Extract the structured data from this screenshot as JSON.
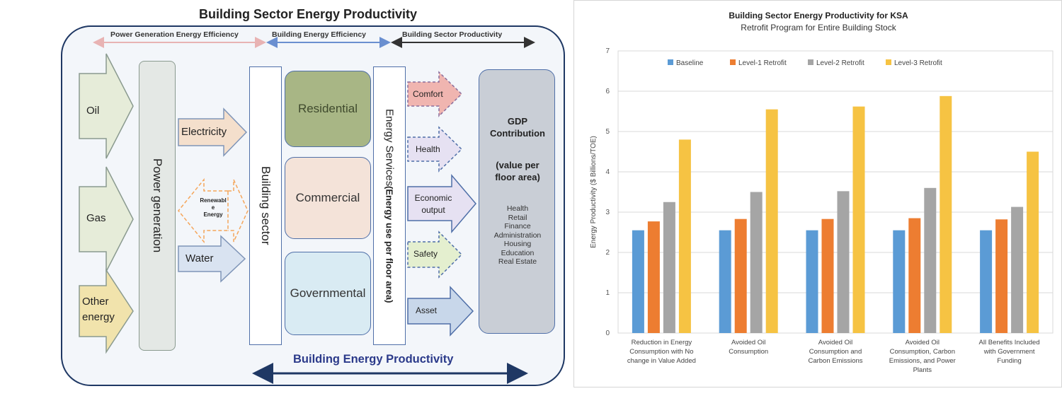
{
  "diagram": {
    "title": "Building Sector Energy Productivity",
    "bands": {
      "power_gen": "Power Generation Energy Efficiency",
      "building_eff": "Building Energy Efficiency",
      "sector_prod": "Building Sector Productivity"
    },
    "inputs": {
      "oil": "Oil",
      "gas": "Gas",
      "other_line1": "Other",
      "other_line2": "energy"
    },
    "power_generation": "Power generation",
    "carriers": {
      "electricity": "Electricity",
      "renewable_line1": "Renewabl",
      "renewable_line2": "e",
      "renewable_line3": "Energy",
      "water": "Water"
    },
    "building_sector": "Building sector",
    "sectors": {
      "residential": "Residential",
      "commercial": "Commercial",
      "governmental": "Governmental"
    },
    "energy_services": {
      "line1": "Energy Services",
      "line2": "(Energy use per floor area)"
    },
    "outcomes": {
      "comfort": "Comfort",
      "health": "Health",
      "economic_line1": "Economic",
      "economic_line2": "output",
      "safety": "Safety",
      "asset": "Asset"
    },
    "gdp": {
      "line1": "GDP",
      "line2": "Contribution",
      "value_line1": "(value per",
      "value_line2": "floor area)",
      "items": [
        "Health",
        "Retail",
        "Finance",
        "Administration",
        "Housing",
        "Education",
        "Real Estate"
      ]
    },
    "bottom_label": "Building Energy Productivity",
    "colors": {
      "frame": "#1f3864",
      "input_arrow_fill": "#e6ecd9",
      "other_arrow_fill": "#f1e3ac",
      "electricity_fill": "#f4dfcc",
      "renewable_stroke": "#f5a65b",
      "water_fill": "#d9e3f1",
      "comfort_fill": "#f0b5b0",
      "health_fill": "#e6e1f2",
      "economic_fill": "#e6e1f2",
      "safety_fill": "#e4efcf",
      "asset_fill": "#c8d7ea",
      "band_pink": "#e8b3b3",
      "band_blue": "#6a8fd0",
      "band_dark": "#333333"
    }
  },
  "chart_data": {
    "type": "bar",
    "title": "Building Sector Energy Productivity for KSA",
    "subtitle": "Retrofit Program for Entire Building Stock",
    "ylabel": "Energy Productivity ($ Billions/TOE)",
    "xlabel": "",
    "ylim": [
      0,
      7
    ],
    "yticks": [
      0,
      1,
      2,
      3,
      4,
      5,
      6,
      7
    ],
    "grid": true,
    "legend_position": "top",
    "categories": [
      [
        "Reduction in Energy",
        "Consumption with No",
        "change in Value Added"
      ],
      [
        "Avoided Oil",
        "Consumption"
      ],
      [
        "Avoided Oil",
        "Consumption and",
        "Carbon Emissions"
      ],
      [
        "Avoided Oil",
        "Consumption, Carbon",
        "Emissions, and Power",
        "Plants"
      ],
      [
        "All Benefits Included",
        "with Government",
        "Funding"
      ]
    ],
    "series": [
      {
        "name": "Baseline",
        "color": "#5b9bd5",
        "values": [
          2.55,
          2.55,
          2.55,
          2.55,
          2.55
        ]
      },
      {
        "name": "Level-1 Retrofit",
        "color": "#ed7d31",
        "values": [
          2.77,
          2.83,
          2.83,
          2.85,
          2.82
        ]
      },
      {
        "name": "Level-2 Retrofit",
        "color": "#a5a5a5",
        "values": [
          3.25,
          3.5,
          3.52,
          3.6,
          3.13
        ]
      },
      {
        "name": "Level-3 Retrofit",
        "color": "#f6c343",
        "values": [
          4.8,
          5.55,
          5.62,
          5.88,
          4.5
        ]
      }
    ]
  }
}
